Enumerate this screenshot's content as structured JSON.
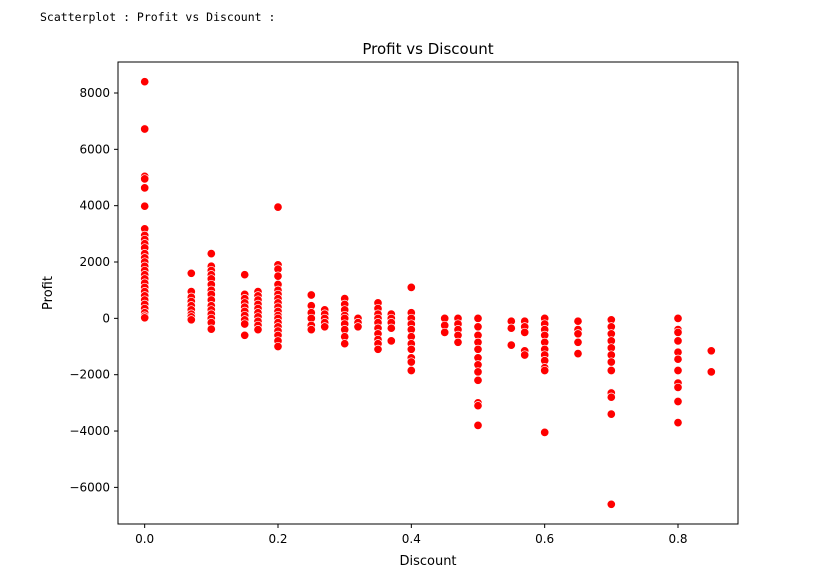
{
  "caption": "Scatterplot : Profit vs Discount :",
  "chart_data": {
    "type": "scatter",
    "title": "Profit vs Discount",
    "xlabel": "Discount",
    "ylabel": "Profit",
    "xlim": [
      -0.04,
      0.89
    ],
    "ylim": [
      -7300,
      9100
    ],
    "xticks": [
      0.0,
      0.2,
      0.4,
      0.6,
      0.8
    ],
    "xtick_labels": [
      "0.0",
      "0.2",
      "0.4",
      "0.6",
      "0.8"
    ],
    "yticks": [
      -6000,
      -4000,
      -2000,
      0,
      2000,
      4000,
      6000,
      8000
    ],
    "ytick_labels": [
      "−6000",
      "−4000",
      "−2000",
      "0",
      "2000",
      "4000",
      "6000",
      "8000"
    ],
    "grid": false,
    "marker_color": "#ff0000",
    "marker_edge_color": "#ffffff",
    "points": [
      [
        0.0,
        8400
      ],
      [
        0.0,
        6720
      ],
      [
        0.0,
        5040
      ],
      [
        0.0,
        4950
      ],
      [
        0.0,
        4630
      ],
      [
        0.0,
        3980
      ],
      [
        0.0,
        3180
      ],
      [
        0.0,
        2950
      ],
      [
        0.0,
        2800
      ],
      [
        0.0,
        2650
      ],
      [
        0.0,
        2500
      ],
      [
        0.0,
        2300
      ],
      [
        0.0,
        2150
      ],
      [
        0.0,
        2000
      ],
      [
        0.0,
        1850
      ],
      [
        0.0,
        1700
      ],
      [
        0.0,
        1550
      ],
      [
        0.0,
        1400
      ],
      [
        0.0,
        1250
      ],
      [
        0.0,
        1100
      ],
      [
        0.0,
        950
      ],
      [
        0.0,
        800
      ],
      [
        0.0,
        650
      ],
      [
        0.0,
        500
      ],
      [
        0.0,
        350
      ],
      [
        0.0,
        200
      ],
      [
        0.0,
        80
      ],
      [
        0.0,
        20
      ],
      [
        0.07,
        1600
      ],
      [
        0.07,
        950
      ],
      [
        0.07,
        750
      ],
      [
        0.07,
        600
      ],
      [
        0.07,
        450
      ],
      [
        0.07,
        300
      ],
      [
        0.07,
        150
      ],
      [
        0.07,
        50
      ],
      [
        0.07,
        -50
      ],
      [
        0.1,
        2300
      ],
      [
        0.1,
        1850
      ],
      [
        0.1,
        1700
      ],
      [
        0.1,
        1550
      ],
      [
        0.1,
        1400
      ],
      [
        0.1,
        1200
      ],
      [
        0.1,
        1000
      ],
      [
        0.1,
        850
      ],
      [
        0.1,
        650
      ],
      [
        0.1,
        450
      ],
      [
        0.1,
        300
      ],
      [
        0.1,
        150
      ],
      [
        0.1,
        0
      ],
      [
        0.1,
        -150
      ],
      [
        0.1,
        -380
      ],
      [
        0.15,
        1550
      ],
      [
        0.15,
        850
      ],
      [
        0.15,
        700
      ],
      [
        0.15,
        550
      ],
      [
        0.15,
        400
      ],
      [
        0.15,
        250
      ],
      [
        0.15,
        100
      ],
      [
        0.15,
        -50
      ],
      [
        0.15,
        -200
      ],
      [
        0.15,
        -600
      ],
      [
        0.17,
        950
      ],
      [
        0.17,
        800
      ],
      [
        0.17,
        650
      ],
      [
        0.17,
        500
      ],
      [
        0.17,
        350
      ],
      [
        0.17,
        200
      ],
      [
        0.17,
        50
      ],
      [
        0.17,
        -100
      ],
      [
        0.17,
        -250
      ],
      [
        0.17,
        -400
      ],
      [
        0.2,
        3950
      ],
      [
        0.2,
        1900
      ],
      [
        0.2,
        1750
      ],
      [
        0.2,
        1500
      ],
      [
        0.2,
        1200
      ],
      [
        0.2,
        1000
      ],
      [
        0.2,
        850
      ],
      [
        0.2,
        700
      ],
      [
        0.2,
        550
      ],
      [
        0.2,
        400
      ],
      [
        0.2,
        250
      ],
      [
        0.2,
        100
      ],
      [
        0.2,
        0
      ],
      [
        0.2,
        -150
      ],
      [
        0.2,
        -300
      ],
      [
        0.2,
        -450
      ],
      [
        0.2,
        -600
      ],
      [
        0.2,
        -800
      ],
      [
        0.2,
        -1000
      ],
      [
        0.25,
        830
      ],
      [
        0.25,
        450
      ],
      [
        0.25,
        200
      ],
      [
        0.25,
        0
      ],
      [
        0.25,
        -250
      ],
      [
        0.25,
        -400
      ],
      [
        0.27,
        300
      ],
      [
        0.27,
        150
      ],
      [
        0.27,
        0
      ],
      [
        0.27,
        -150
      ],
      [
        0.27,
        -300
      ],
      [
        0.3,
        700
      ],
      [
        0.3,
        500
      ],
      [
        0.3,
        300
      ],
      [
        0.3,
        100
      ],
      [
        0.3,
        0
      ],
      [
        0.3,
        -200
      ],
      [
        0.3,
        -400
      ],
      [
        0.3,
        -650
      ],
      [
        0.3,
        -900
      ],
      [
        0.32,
        0
      ],
      [
        0.32,
        -150
      ],
      [
        0.32,
        -300
      ],
      [
        0.35,
        550
      ],
      [
        0.35,
        350
      ],
      [
        0.35,
        150
      ],
      [
        0.35,
        0
      ],
      [
        0.35,
        -150
      ],
      [
        0.35,
        -350
      ],
      [
        0.35,
        -550
      ],
      [
        0.35,
        -750
      ],
      [
        0.35,
        -900
      ],
      [
        0.35,
        -1100
      ],
      [
        0.37,
        150
      ],
      [
        0.37,
        0
      ],
      [
        0.37,
        -150
      ],
      [
        0.37,
        -350
      ],
      [
        0.37,
        -800
      ],
      [
        0.4,
        1100
      ],
      [
        0.4,
        200
      ],
      [
        0.4,
        0
      ],
      [
        0.4,
        -200
      ],
      [
        0.4,
        -400
      ],
      [
        0.4,
        -650
      ],
      [
        0.4,
        -900
      ],
      [
        0.4,
        -1100
      ],
      [
        0.4,
        -1400
      ],
      [
        0.4,
        -1550
      ],
      [
        0.4,
        -1850
      ],
      [
        0.45,
        0
      ],
      [
        0.45,
        -250
      ],
      [
        0.45,
        -500
      ],
      [
        0.47,
        0
      ],
      [
        0.47,
        -200
      ],
      [
        0.47,
        -400
      ],
      [
        0.47,
        -600
      ],
      [
        0.47,
        -850
      ],
      [
        0.5,
        0
      ],
      [
        0.5,
        -300
      ],
      [
        0.5,
        -600
      ],
      [
        0.5,
        -850
      ],
      [
        0.5,
        -1100
      ],
      [
        0.5,
        -1400
      ],
      [
        0.5,
        -1650
      ],
      [
        0.5,
        -1900
      ],
      [
        0.5,
        -2200
      ],
      [
        0.5,
        -3000
      ],
      [
        0.5,
        -3100
      ],
      [
        0.5,
        -3800
      ],
      [
        0.55,
        -100
      ],
      [
        0.55,
        -350
      ],
      [
        0.55,
        -950
      ],
      [
        0.57,
        -100
      ],
      [
        0.57,
        -300
      ],
      [
        0.57,
        -500
      ],
      [
        0.57,
        -1150
      ],
      [
        0.57,
        -1300
      ],
      [
        0.6,
        0
      ],
      [
        0.6,
        -200
      ],
      [
        0.6,
        -400
      ],
      [
        0.6,
        -600
      ],
      [
        0.6,
        -850
      ],
      [
        0.6,
        -1100
      ],
      [
        0.6,
        -1300
      ],
      [
        0.6,
        -1500
      ],
      [
        0.6,
        -1750
      ],
      [
        0.6,
        -1850
      ],
      [
        0.6,
        -4050
      ],
      [
        0.65,
        -100
      ],
      [
        0.65,
        -400
      ],
      [
        0.65,
        -550
      ],
      [
        0.65,
        -850
      ],
      [
        0.65,
        -1250
      ],
      [
        0.7,
        -50
      ],
      [
        0.7,
        -300
      ],
      [
        0.7,
        -550
      ],
      [
        0.7,
        -800
      ],
      [
        0.7,
        -1050
      ],
      [
        0.7,
        -1300
      ],
      [
        0.7,
        -1550
      ],
      [
        0.7,
        -1850
      ],
      [
        0.7,
        -2650
      ],
      [
        0.7,
        -2800
      ],
      [
        0.7,
        -3400
      ],
      [
        0.7,
        -6600
      ],
      [
        0.8,
        0
      ],
      [
        0.8,
        -400
      ],
      [
        0.8,
        -500
      ],
      [
        0.8,
        -800
      ],
      [
        0.8,
        -1200
      ],
      [
        0.8,
        -1450
      ],
      [
        0.8,
        -1850
      ],
      [
        0.8,
        -2300
      ],
      [
        0.8,
        -2450
      ],
      [
        0.8,
        -2950
      ],
      [
        0.8,
        -3700
      ],
      [
        0.85,
        -1150
      ],
      [
        0.85,
        -1900
      ]
    ]
  }
}
